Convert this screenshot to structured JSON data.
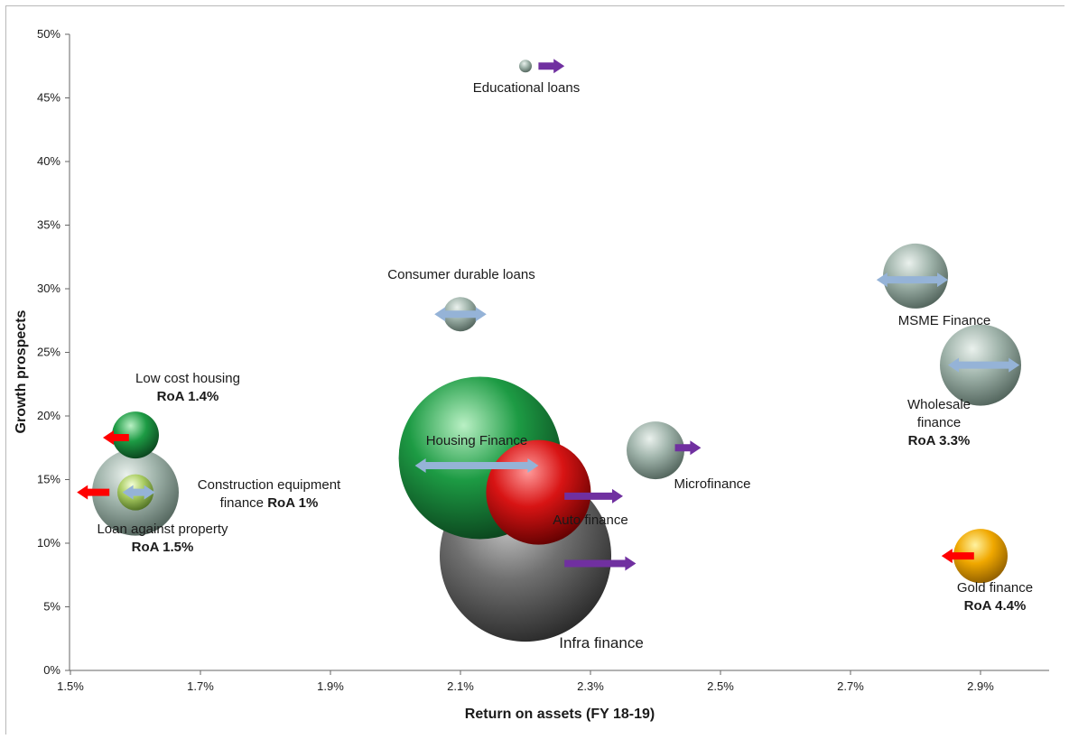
{
  "chart_data": {
    "type": "bubble",
    "xlabel": "Return on assets (FY 18-19)",
    "ylabel": "Growth prospects",
    "xlim": [
      1.5,
      3.0
    ],
    "ylim": [
      0,
      50
    ],
    "xticks": [
      "1.5%",
      "1.7%",
      "1.9%",
      "2.1%",
      "2.3%",
      "2.5%",
      "2.7%",
      "2.9%"
    ],
    "yticks": [
      "0%",
      "5%",
      "10%",
      "15%",
      "20%",
      "25%",
      "30%",
      "35%",
      "40%",
      "45%",
      "50%"
    ],
    "colors": {
      "grey": "#8fa39a",
      "green": "#1f9a45",
      "red": "#d81414",
      "dark": "#555555",
      "gold": "#f0a800",
      "lightgreen": "#b7d47a",
      "arrow_purple": "#7030a0",
      "arrow_red": "#ff0000",
      "arrow_blue": "#95b3d7"
    },
    "bubbles": [
      {
        "name": "Infra finance",
        "x": 2.2,
        "y": 9,
        "size": 95,
        "color": "dark",
        "label": [
          "Infra finance"
        ],
        "arrow": {
          "type": "right",
          "color": "arrow_purple",
          "from": 2.26,
          "to": 2.37,
          "y": 8.4
        }
      },
      {
        "name": "Auto finance",
        "x": 2.22,
        "y": 14,
        "size": 58,
        "color": "red",
        "label": [
          "Auto finance"
        ],
        "arrow": {
          "type": "right",
          "color": "arrow_purple",
          "from": 2.26,
          "to": 2.35,
          "y": 13.7
        }
      },
      {
        "name": "Housing Finance",
        "x": 2.13,
        "y": 16.7,
        "size": 90,
        "color": "green",
        "label": [
          "Housing Finance"
        ],
        "arrow": {
          "type": "both",
          "color": "arrow_blue",
          "from": 2.03,
          "to": 2.22,
          "y": 16.1
        }
      },
      {
        "name": "Educational loans",
        "x": 2.2,
        "y": 47.5,
        "size": 7,
        "color": "grey",
        "label": [
          "Educational loans"
        ],
        "arrow": {
          "type": "right",
          "color": "arrow_purple",
          "from": 2.22,
          "to": 2.26,
          "y": 47.5
        }
      },
      {
        "name": "Consumer durable loans",
        "x": 2.1,
        "y": 28,
        "size": 19,
        "color": "grey",
        "label": [
          "Consumer durable loans"
        ],
        "arrow": {
          "type": "both",
          "color": "arrow_blue",
          "from": 2.06,
          "to": 2.14,
          "y": 28
        }
      },
      {
        "name": "Microfinance",
        "x": 2.4,
        "y": 17.3,
        "size": 32,
        "color": "grey",
        "label": [
          "Microfinance"
        ],
        "arrow": {
          "type": "right",
          "color": "arrow_purple",
          "from": 2.43,
          "to": 2.47,
          "y": 17.5
        }
      },
      {
        "name": "MSME Finance",
        "x": 2.8,
        "y": 31,
        "size": 36,
        "color": "grey",
        "label": [
          "MSME Finance"
        ],
        "arrow": {
          "type": "both",
          "color": "arrow_blue",
          "from": 2.74,
          "to": 2.85,
          "y": 30.7
        }
      },
      {
        "name": "Wholesale finance",
        "x": 2.9,
        "y": 24,
        "size": 45,
        "color": "grey",
        "label": [
          "Wholesale",
          "finance",
          "RoA 3.3%"
        ],
        "arrow": {
          "type": "both",
          "color": "arrow_blue",
          "from": 2.85,
          "to": 2.96,
          "y": 24
        }
      },
      {
        "name": "Gold finance",
        "x": 2.9,
        "y": 9,
        "size": 30,
        "color": "gold",
        "label": [
          "Gold finance",
          "RoA 4.4%"
        ],
        "arrow": {
          "type": "left",
          "color": "arrow_red",
          "from": 2.89,
          "to": 2.84,
          "y": 9
        }
      },
      {
        "name": "Low cost housing",
        "x": 1.6,
        "y": 18.5,
        "size": 26,
        "color": "green",
        "label": [
          "Low cost housing",
          "RoA 1.4%"
        ],
        "arrow": {
          "type": "left",
          "color": "arrow_red",
          "from": 1.59,
          "to": 1.55,
          "y": 18.3
        }
      },
      {
        "name": "Loan against property",
        "x": 1.6,
        "y": 14,
        "size": 48,
        "color": "grey",
        "label": [
          "Loan against property",
          "RoA 1.5%"
        ],
        "arrow": {
          "type": "left",
          "color": "arrow_red",
          "from": 1.56,
          "to": 1.51,
          "y": 14
        }
      },
      {
        "name": "Construction equipment finance",
        "x": 1.6,
        "y": 14,
        "size": 20,
        "color": "lightgreen",
        "label": [
          "Construction equipment",
          "finance RoA 1%"
        ],
        "arrow": {
          "type": "both",
          "color": "arrow_blue",
          "from": 1.58,
          "to": 1.63,
          "y": 14
        }
      }
    ]
  }
}
